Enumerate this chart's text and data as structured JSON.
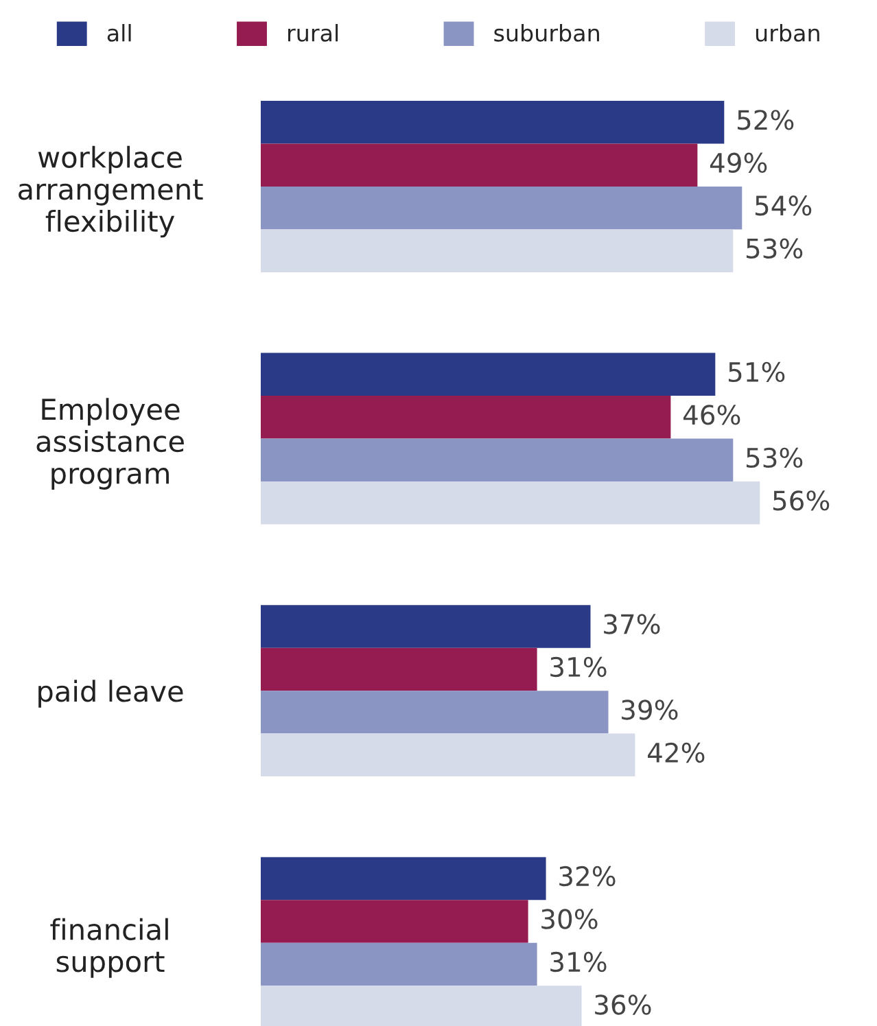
{
  "chart_data": {
    "type": "bar",
    "orientation": "horizontal",
    "categories": [
      "workplace\narrangement\nflexibility",
      "Employee\nassistance\nprogram",
      "paid leave",
      "financial\nsupport"
    ],
    "series": [
      {
        "name": "all",
        "color": "#2b3a86",
        "values": [
          52,
          51,
          37,
          32
        ],
        "value_labels": [
          "52%",
          "51%",
          "37%",
          "32%"
        ]
      },
      {
        "name": "rural",
        "color": "#941c50",
        "values": [
          49,
          46,
          31,
          30
        ],
        "value_labels": [
          "49%",
          "46%",
          "31%",
          "30%"
        ]
      },
      {
        "name": "suburban",
        "color": "#8a95c3",
        "values": [
          54,
          53,
          39,
          31
        ],
        "value_labels": [
          "54%",
          "53%",
          "39%",
          "31%"
        ]
      },
      {
        "name": "urban",
        "color": "#d5dbe8",
        "values": [
          53,
          56,
          42,
          36
        ],
        "value_labels": [
          "53%",
          "56%",
          "42%",
          "36%"
        ]
      }
    ],
    "legend": "top",
    "grid": false
  }
}
